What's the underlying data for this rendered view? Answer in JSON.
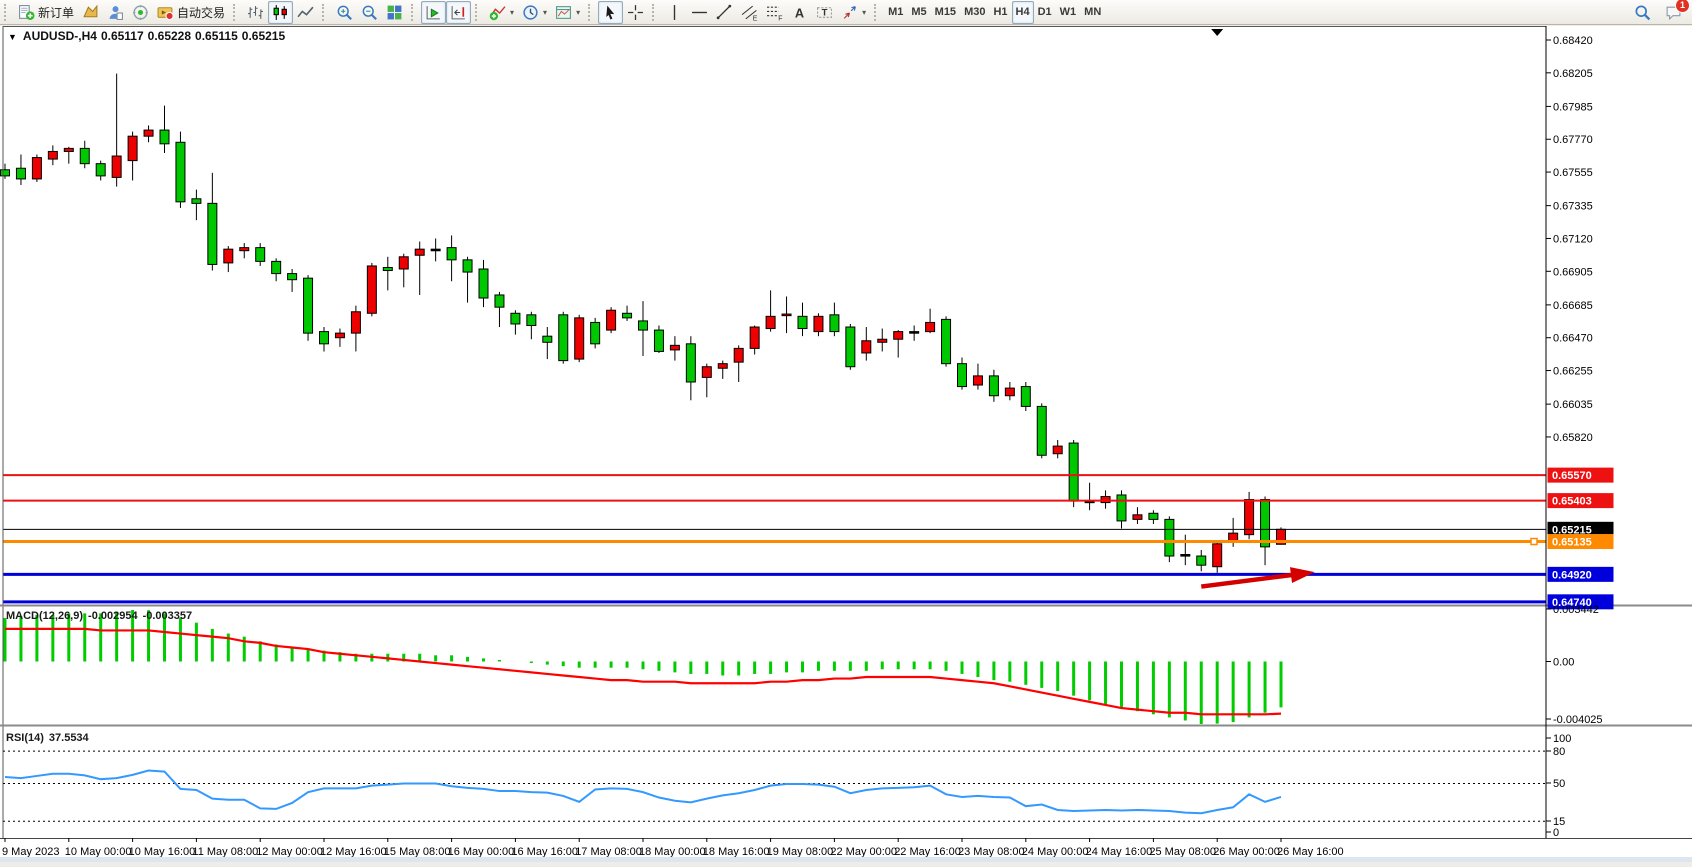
{
  "toolbar": {
    "groups": [
      {
        "items": [
          {
            "name": "new-order-button",
            "icon": "new-order",
            "label": "新订单"
          },
          {
            "name": "new-chart-button",
            "icon": "gold-chart"
          },
          {
            "name": "mql5-community-button",
            "icon": "community-person"
          },
          {
            "name": "market-radar-button",
            "icon": "radar"
          },
          {
            "name": "autotrading-button",
            "icon": "autotrading",
            "label": "自动交易"
          }
        ]
      },
      {
        "items": [
          {
            "name": "bar-chart-button",
            "icon": "bar-chart"
          },
          {
            "name": "candlestick-chart-button",
            "icon": "candle-chart",
            "active": true
          },
          {
            "name": "line-chart-button",
            "icon": "line-chart"
          }
        ]
      },
      {
        "items": [
          {
            "name": "zoom-in-button",
            "icon": "zoom-in"
          },
          {
            "name": "zoom-out-button",
            "icon": "zoom-out"
          },
          {
            "name": "tile-windows-button",
            "icon": "tile-windows"
          }
        ]
      },
      {
        "items": [
          {
            "name": "auto-scroll-button",
            "icon": "auto-scroll",
            "active": true
          },
          {
            "name": "chart-shift-button",
            "icon": "chart-shift",
            "active": true
          }
        ]
      },
      {
        "items": [
          {
            "name": "indicators-button",
            "icon": "indicators",
            "dropdown": true
          },
          {
            "name": "periods-button",
            "icon": "periods-clock",
            "dropdown": true
          },
          {
            "name": "templates-button",
            "icon": "templates",
            "dropdown": true
          }
        ]
      },
      {
        "items": [
          {
            "name": "cursor-button",
            "icon": "cursor",
            "active": true
          },
          {
            "name": "crosshair-button",
            "icon": "crosshair"
          }
        ]
      },
      {
        "items": [
          {
            "name": "vertical-line-button",
            "icon": "v-line"
          },
          {
            "name": "horizontal-line-button",
            "icon": "h-line"
          },
          {
            "name": "trendline-button",
            "icon": "trend-line"
          },
          {
            "name": "equidistant-channel-button",
            "icon": "channel"
          },
          {
            "name": "fibonacci-button",
            "icon": "fibonacci"
          },
          {
            "name": "text-button",
            "icon": "text-a"
          },
          {
            "name": "text-label-button",
            "icon": "text-label"
          },
          {
            "name": "arrows-button",
            "icon": "arrows-tool",
            "dropdown": true
          }
        ]
      }
    ],
    "timeframes": [
      {
        "label": "M1"
      },
      {
        "label": "M5"
      },
      {
        "label": "M15"
      },
      {
        "label": "M30"
      },
      {
        "label": "H1"
      },
      {
        "label": "H4",
        "active": true
      },
      {
        "label": "D1"
      },
      {
        "label": "W1"
      },
      {
        "label": "MN"
      }
    ],
    "right": [
      {
        "name": "search-button",
        "icon": "search"
      },
      {
        "name": "notifications-button",
        "icon": "chat",
        "badge": "1"
      }
    ]
  },
  "chart": {
    "title": {
      "collapse_icon": "▼",
      "symbol": "AUDUSD-,H4",
      "open": "0.65117",
      "high": "0.65228",
      "low": "0.65115",
      "close": "0.65215"
    },
    "price_axis_ticks": [
      "0.68420",
      "0.68205",
      "0.67985",
      "0.67770",
      "0.67555",
      "0.67335",
      "0.67120",
      "0.66905",
      "0.66685",
      "0.66470",
      "0.66255",
      "0.66035",
      "0.65820"
    ],
    "hlines": [
      {
        "price": 0.6557,
        "label": "0.65570",
        "color": "#ee1111",
        "width": 2,
        "object": true
      },
      {
        "price": 0.65403,
        "label": "0.65403",
        "color": "#ee1111",
        "width": 2,
        "object": true
      },
      {
        "price": 0.65215,
        "label": "0.65215",
        "color": "#000000",
        "width": 1,
        "object": false
      },
      {
        "price": 0.65135,
        "label": "0.65135",
        "color": "#ff8a00",
        "width": 3,
        "object": true,
        "handle": true
      },
      {
        "price": 0.6492,
        "label": "0.64920",
        "color": "#0000dd",
        "width": 3,
        "object": true
      },
      {
        "price": 0.6474,
        "label": "0.64740",
        "color": "#0000dd",
        "width": 3,
        "object": true
      }
    ],
    "shift_marker_bar": 76
  },
  "indicators": {
    "macd": {
      "name": "MACD(12,26,9)",
      "value1": "-0.002954",
      "value2": "-0.003357",
      "axis_max": "0.003442",
      "axis_zero": "0.00",
      "axis_min": "-0.004025"
    },
    "rsi": {
      "name": "RSI(14)",
      "value": "37.5534",
      "axis": [
        "100",
        "80",
        "50",
        "15",
        "0"
      ],
      "levels": [
        80,
        50,
        15
      ]
    }
  },
  "chart_data": {
    "type": "candlestick",
    "symbol": "AUDUSD",
    "timeframe": "H4",
    "time_labels": [
      "9 May 2023",
      "10 May 00:00",
      "10 May 16:00",
      "11 May 08:00",
      "12 May 00:00",
      "12 May 16:00",
      "15 May 08:00",
      "16 May 00:00",
      "16 May 16:00",
      "17 May 08:00",
      "18 May 00:00",
      "18 May 16:00",
      "19 May 08:00",
      "22 May 00:00",
      "22 May 16:00",
      "23 May 08:00",
      "24 May 00:00",
      "24 May 16:00",
      "25 May 08:00",
      "26 May 00:00",
      "26 May 16:00"
    ],
    "time_label_every_n_bars": 4,
    "price_range_visible": [
      0.6474,
      0.6842
    ],
    "ohlc": [
      [
        0.6757,
        0.6761,
        0.6751,
        0.6753
      ],
      [
        0.6758,
        0.6767,
        0.6747,
        0.6751
      ],
      [
        0.6751,
        0.6767,
        0.6749,
        0.6765
      ],
      [
        0.6764,
        0.6773,
        0.676,
        0.6769
      ],
      [
        0.6769,
        0.6772,
        0.6761,
        0.6771
      ],
      [
        0.6771,
        0.6776,
        0.6758,
        0.6761
      ],
      [
        0.6761,
        0.6763,
        0.675,
        0.6753
      ],
      [
        0.6752,
        0.682,
        0.6746,
        0.6766
      ],
      [
        0.6763,
        0.6782,
        0.675,
        0.6779
      ],
      [
        0.6779,
        0.6786,
        0.6775,
        0.6783
      ],
      [
        0.6783,
        0.6799,
        0.6768,
        0.6774
      ],
      [
        0.6775,
        0.6782,
        0.6732,
        0.6736
      ],
      [
        0.6738,
        0.6744,
        0.6724,
        0.6735
      ],
      [
        0.6735,
        0.6755,
        0.6691,
        0.6695
      ],
      [
        0.6696,
        0.6707,
        0.669,
        0.6705
      ],
      [
        0.6704,
        0.6709,
        0.6699,
        0.6706
      ],
      [
        0.6706,
        0.6709,
        0.6694,
        0.6697
      ],
      [
        0.6697,
        0.6699,
        0.6684,
        0.6689
      ],
      [
        0.6689,
        0.6692,
        0.6677,
        0.6685
      ],
      [
        0.6686,
        0.6688,
        0.6645,
        0.665
      ],
      [
        0.6651,
        0.6654,
        0.6638,
        0.6643
      ],
      [
        0.6647,
        0.6653,
        0.6641,
        0.665
      ],
      [
        0.665,
        0.6668,
        0.6638,
        0.6664
      ],
      [
        0.6663,
        0.6696,
        0.6661,
        0.6694
      ],
      [
        0.6693,
        0.67,
        0.6678,
        0.6691
      ],
      [
        0.6692,
        0.6702,
        0.668,
        0.67
      ],
      [
        0.6701,
        0.671,
        0.6675,
        0.6705
      ],
      [
        0.6705,
        0.6712,
        0.6697,
        0.6705
      ],
      [
        0.6706,
        0.6714,
        0.6684,
        0.6698
      ],
      [
        0.6698,
        0.67,
        0.667,
        0.669
      ],
      [
        0.6692,
        0.6698,
        0.6667,
        0.6673
      ],
      [
        0.6675,
        0.6677,
        0.6654,
        0.6667
      ],
      [
        0.6663,
        0.6665,
        0.6649,
        0.6656
      ],
      [
        0.6662,
        0.6664,
        0.6646,
        0.6655
      ],
      [
        0.6648,
        0.6654,
        0.6633,
        0.6644
      ],
      [
        0.6662,
        0.6664,
        0.663,
        0.6632
      ],
      [
        0.6633,
        0.6662,
        0.6631,
        0.666
      ],
      [
        0.6657,
        0.666,
        0.664,
        0.6643
      ],
      [
        0.6652,
        0.6667,
        0.665,
        0.6665
      ],
      [
        0.6663,
        0.6668,
        0.6658,
        0.666
      ],
      [
        0.6658,
        0.6671,
        0.6635,
        0.6652
      ],
      [
        0.6652,
        0.6655,
        0.6637,
        0.6638
      ],
      [
        0.6639,
        0.6648,
        0.6632,
        0.6642
      ],
      [
        0.6643,
        0.6648,
        0.6606,
        0.6618
      ],
      [
        0.6621,
        0.663,
        0.6608,
        0.6628
      ],
      [
        0.6627,
        0.6632,
        0.662,
        0.663
      ],
      [
        0.6631,
        0.6642,
        0.6618,
        0.664
      ],
      [
        0.664,
        0.6655,
        0.6636,
        0.6654
      ],
      [
        0.6653,
        0.6678,
        0.6651,
        0.6661
      ],
      [
        0.66615,
        0.6674,
        0.665,
        0.66625
      ],
      [
        0.6661,
        0.667,
        0.6648,
        0.6653
      ],
      [
        0.6651,
        0.6663,
        0.6648,
        0.6661
      ],
      [
        0.6662,
        0.667,
        0.6648,
        0.6651
      ],
      [
        0.6654,
        0.6656,
        0.6626,
        0.6628
      ],
      [
        0.6637,
        0.6654,
        0.6632,
        0.6645
      ],
      [
        0.6644,
        0.6653,
        0.6638,
        0.6646
      ],
      [
        0.6646,
        0.6652,
        0.6634,
        0.6651
      ],
      [
        0.6651,
        0.6655,
        0.6645,
        0.6651
      ],
      [
        0.6651,
        0.6666,
        0.665,
        0.6657
      ],
      [
        0.6659,
        0.6661,
        0.6628,
        0.663
      ],
      [
        0.663,
        0.6634,
        0.6613,
        0.6615
      ],
      [
        0.6616,
        0.663,
        0.6613,
        0.6622
      ],
      [
        0.6622,
        0.6626,
        0.6605,
        0.6609
      ],
      [
        0.6609,
        0.6618,
        0.6606,
        0.6614
      ],
      [
        0.6615,
        0.6618,
        0.6599,
        0.6602
      ],
      [
        0.6602,
        0.6604,
        0.6568,
        0.657
      ],
      [
        0.6571,
        0.658,
        0.6568,
        0.6576
      ],
      [
        0.6578,
        0.658,
        0.6536,
        0.654
      ],
      [
        0.654,
        0.6552,
        0.6534,
        0.654
      ],
      [
        0.6539,
        0.6547,
        0.6535,
        0.6543
      ],
      [
        0.6544,
        0.6547,
        0.6522,
        0.6527
      ],
      [
        0.6528,
        0.6536,
        0.6525,
        0.6531
      ],
      [
        0.6532,
        0.6534,
        0.6525,
        0.6528
      ],
      [
        0.6528,
        0.653,
        0.65,
        0.6504
      ],
      [
        0.6505,
        0.6518,
        0.6498,
        0.6505
      ],
      [
        0.6504,
        0.6508,
        0.6494,
        0.6498
      ],
      [
        0.6497,
        0.6514,
        0.6493,
        0.6512
      ],
      [
        0.6513,
        0.6529,
        0.651,
        0.6519
      ],
      [
        0.6518,
        0.6546,
        0.6515,
        0.6541
      ],
      [
        0.6541,
        0.6543,
        0.6498,
        0.651
      ],
      [
        0.65117,
        0.65228,
        0.65115,
        0.65215
      ]
    ],
    "macd_histogram": [
      0.0028,
      0.0029,
      0.003,
      0.003,
      0.0031,
      0.0031,
      0.0031,
      0.0032,
      0.0034,
      0.0033,
      0.0031,
      0.0028,
      0.0025,
      0.0021,
      0.0018,
      0.0016,
      0.0013,
      0.0011,
      0.0009,
      0.0008,
      0.0007,
      0.0006,
      0.0005,
      0.0005,
      0.0005,
      0.0005,
      0.0005,
      0.0004,
      0.0004,
      0.0003,
      0.0002,
      0.0001,
      0.0,
      -0.0001,
      -0.0002,
      -0.0003,
      -0.0004,
      -0.0004,
      -0.0004,
      -0.0004,
      -0.0005,
      -0.0006,
      -0.0007,
      -0.0008,
      -0.0008,
      -0.0009,
      -0.0009,
      -0.0008,
      -0.0008,
      -0.0007,
      -0.0007,
      -0.0006,
      -0.0006,
      -0.0006,
      -0.0006,
      -0.0005,
      -0.0005,
      -0.0005,
      -0.0005,
      -0.0006,
      -0.0008,
      -0.001,
      -0.0012,
      -0.0013,
      -0.0015,
      -0.0017,
      -0.0019,
      -0.0022,
      -0.0025,
      -0.0028,
      -0.003,
      -0.0032,
      -0.0034,
      -0.0036,
      -0.0038,
      -0.004025,
      -0.004,
      -0.0039,
      -0.0036,
      -0.0033,
      -0.002954
    ],
    "macd_signal": [
      0.0021,
      0.0021,
      0.0021,
      0.0021,
      0.0021,
      0.0021,
      0.002,
      0.002,
      0.002,
      0.002,
      0.0019,
      0.0018,
      0.0017,
      0.0016,
      0.0015,
      0.0013,
      0.0012,
      0.001,
      0.0009,
      0.0008,
      0.0006,
      0.0005,
      0.0004,
      0.0003,
      0.0002,
      0.0001,
      0.0,
      -0.0001,
      -0.0002,
      -0.0003,
      -0.0004,
      -0.0005,
      -0.0006,
      -0.0007,
      -0.0008,
      -0.0009,
      -0.001,
      -0.0011,
      -0.0012,
      -0.0012,
      -0.0013,
      -0.0013,
      -0.0013,
      -0.0014,
      -0.0014,
      -0.0014,
      -0.0014,
      -0.0014,
      -0.0013,
      -0.0013,
      -0.0012,
      -0.0012,
      -0.0011,
      -0.0011,
      -0.001,
      -0.001,
      -0.001,
      -0.001,
      -0.001,
      -0.0011,
      -0.0012,
      -0.0013,
      -0.0014,
      -0.0016,
      -0.0018,
      -0.002,
      -0.0022,
      -0.0024,
      -0.0026,
      -0.0028,
      -0.003,
      -0.0031,
      -0.0032,
      -0.0033,
      -0.0033,
      -0.0034,
      -0.0034,
      -0.0034,
      -0.0034,
      -0.0034,
      -0.003357
    ],
    "rsi": [
      56,
      55,
      57,
      59,
      59,
      57.5,
      54,
      55,
      58,
      62,
      61,
      45,
      44,
      36,
      35,
      35,
      27,
      26.5,
      32,
      42,
      45.5,
      45.5,
      45.5,
      48,
      49,
      50,
      50,
      50,
      47.5,
      46,
      45,
      43,
      43,
      42,
      41.5,
      38.5,
      33,
      44.5,
      45.5,
      45,
      42,
      37,
      34,
      32.5,
      36,
      39,
      41,
      44,
      48,
      49.5,
      49.5,
      49,
      47,
      41,
      44,
      45.5,
      46,
      46.5,
      48,
      40,
      37.5,
      38.5,
      37.5,
      37,
      29,
      30.5,
      25.5,
      24.5,
      25,
      25.5,
      25,
      25.5,
      25,
      24.5,
      23,
      22.5,
      25.5,
      28,
      40,
      33,
      37.55
    ],
    "annotations": [
      {
        "shape": "arrow",
        "color": "#d40000",
        "from": {
          "bar": 75,
          "price": 0.6484
        },
        "to": {
          "bar": 81,
          "price": 0.6492
        },
        "points_at": "support line 0.64920"
      }
    ]
  },
  "colors": {
    "bull": "#ee0000",
    "bear": "#00c800",
    "doji": "#000000",
    "wick": "#000000",
    "macd_hist": "#00cc00",
    "macd_signal": "#ff0000",
    "rsi_line": "#3399ff",
    "axis_text": "#000000",
    "panel_bg": "#ffffff",
    "label_text": "#ffffff"
  }
}
